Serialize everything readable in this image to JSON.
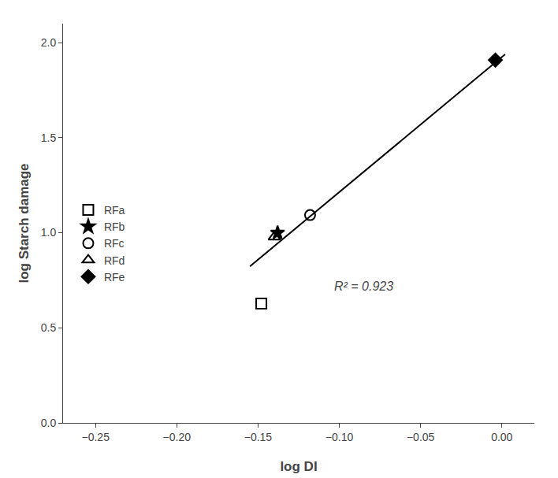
{
  "chart_data": {
    "type": "scatter",
    "xlabel": "log DI",
    "ylabel": "log Starch damage",
    "series": [
      {
        "type": "line",
        "color": "black",
        "x": [
          -0.155,
          0.002
        ],
        "values": [
          0.8235,
          1.9382
        ]
      },
      {
        "name": "RFa",
        "marker": "square-open",
        "color": "black",
        "x": [
          -0.148
        ],
        "values": [
          0.628
        ]
      },
      {
        "name": "RFb",
        "marker": "star",
        "color": "black",
        "x": [
          -0.138
        ],
        "values": [
          1.0
        ]
      },
      {
        "name": "RFc",
        "marker": "circle-open",
        "color": "black",
        "x": [
          -0.118
        ],
        "values": [
          1.093
        ]
      },
      {
        "name": "RFd",
        "marker": "triangle-up-open",
        "color": "black",
        "x": [
          -0.14
        ],
        "values": [
          0.978
        ]
      },
      {
        "name": "RFe",
        "marker": "diamond",
        "color": "black",
        "x": [
          -0.004
        ],
        "values": [
          1.908
        ]
      }
    ],
    "annotations": [
      {
        "text": "R² = 0.923",
        "x": -0.085,
        "y": 0.72
      }
    ],
    "xlim": [
      -0.27,
      0.02
    ],
    "ylim": [
      0,
      2.1
    ],
    "xticks": [
      {
        "value": -0.25,
        "label": "−0.25"
      },
      {
        "value": -0.2,
        "label": "−0.20"
      },
      {
        "value": -0.15,
        "label": "−0.15"
      },
      {
        "value": -0.1,
        "label": "−0.10"
      },
      {
        "value": -0.05,
        "label": "−0.05"
      },
      {
        "value": 0.0,
        "label": "0.00"
      }
    ],
    "yticks": [
      {
        "value": 0,
        "label": "0.0"
      },
      0.5,
      {
        "value": 1.0,
        "label": "1.0"
      },
      1.5,
      {
        "value": 2.0,
        "label": "2.0"
      }
    ],
    "grid": false,
    "legend": "left"
  }
}
